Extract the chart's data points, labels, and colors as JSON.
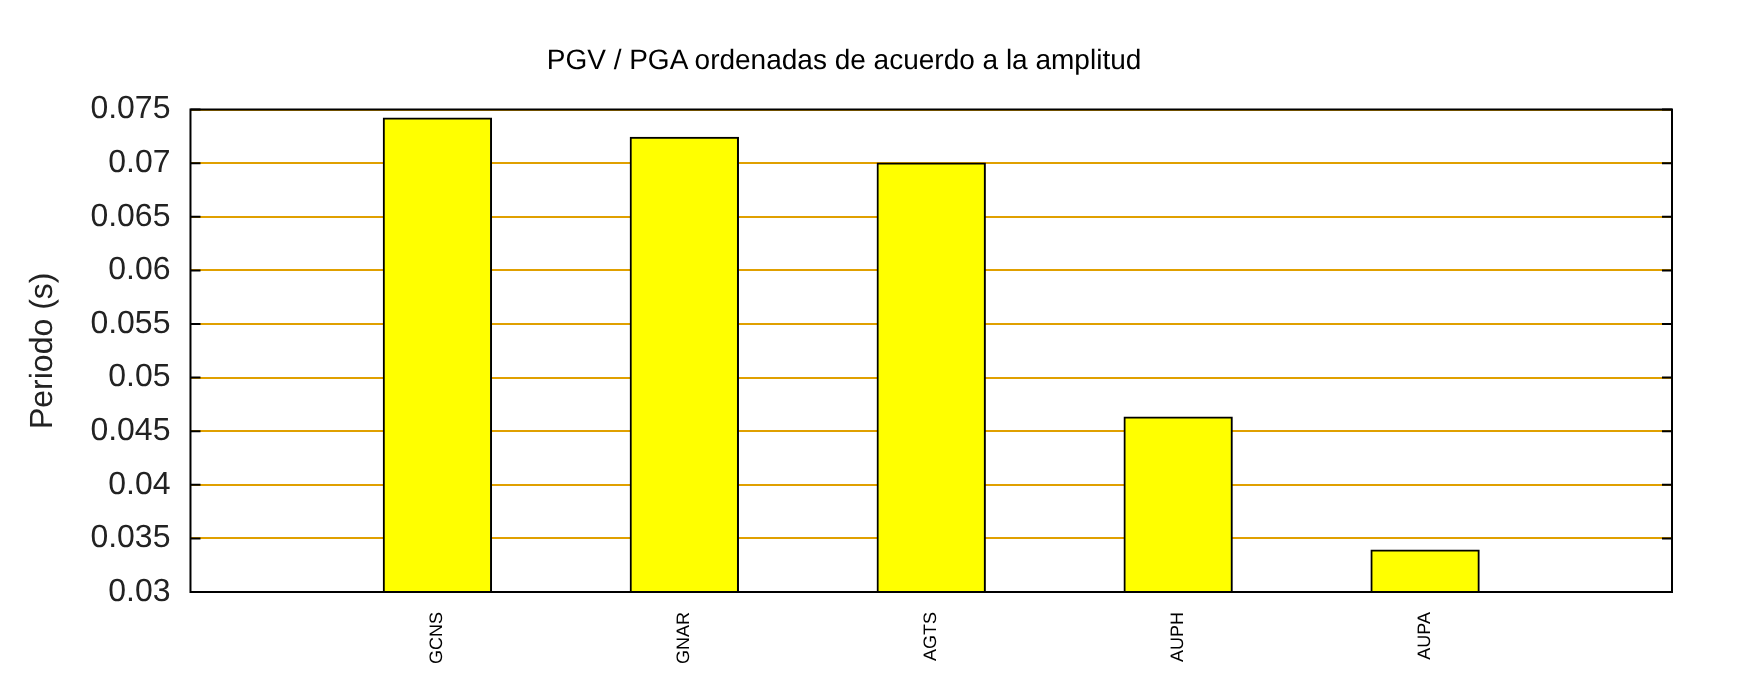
{
  "chart_data": {
    "type": "bar",
    "title": "PGV / PGA ordenadas de acuerdo a la amplitud",
    "ylabel": "Periodo (s)",
    "categories": [
      "GCNS",
      "GNAR",
      "AGTS",
      "AUPH",
      "AUPA"
    ],
    "values": [
      0.0742,
      0.0724,
      0.07,
      0.0463,
      0.0339
    ],
    "color": "#ffff00",
    "ylim": [
      0.03,
      0.075
    ],
    "yticks": [
      0.03,
      0.035,
      0.04,
      0.045,
      0.05,
      0.055,
      0.06,
      0.065,
      0.07,
      0.075
    ],
    "grid": "y",
    "legend": false
  }
}
